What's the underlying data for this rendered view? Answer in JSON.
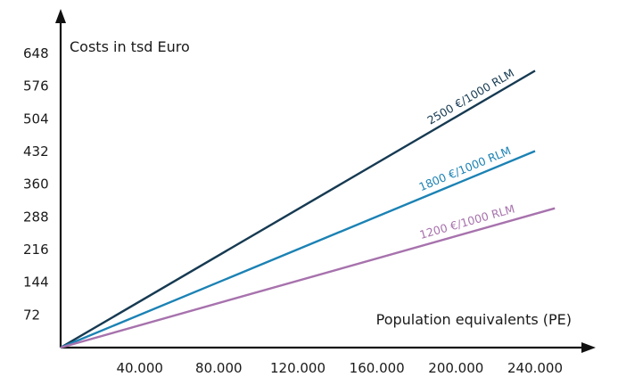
{
  "chart_data": {
    "type": "line",
    "title": "",
    "xlabel": "Population equivalents (PE)",
    "ylabel": "Costs in tsd Euro",
    "x_ticks": [
      "40.000",
      "80.000",
      "120.000",
      "160.000",
      "200.000",
      "240.000"
    ],
    "y_ticks": [
      "72",
      "144",
      "216",
      "288",
      "360",
      "432",
      "504",
      "576",
      "648"
    ],
    "x_tick_values": [
      40000,
      80000,
      120000,
      160000,
      200000,
      240000
    ],
    "y_tick_values": [
      72,
      144,
      216,
      288,
      360,
      432,
      504,
      576,
      648
    ],
    "xlim": [
      0,
      250000
    ],
    "ylim": [
      0,
      648
    ],
    "grid": false,
    "series": [
      {
        "name": "2500 €/1000 RLM",
        "color": "#163a52",
        "x": [
          0,
          240000
        ],
        "y": [
          0,
          610
        ]
      },
      {
        "name": "1800 €/1000 RLM",
        "color": "#1b82b4",
        "x": [
          0,
          240000
        ],
        "y": [
          0,
          433
        ]
      },
      {
        "name": "1200 €/1000 RLM",
        "color": "#a772ad",
        "x": [
          0,
          250000
        ],
        "y": [
          0,
          307
        ]
      }
    ]
  }
}
